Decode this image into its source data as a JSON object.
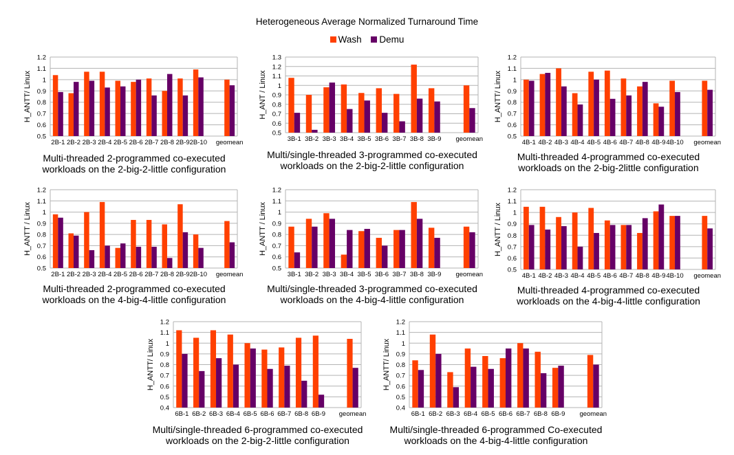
{
  "title": "Heterogeneous Average Normalized Turnaround Time",
  "legend": [
    {
      "name": "Wash",
      "color": "#ff4000"
    },
    {
      "name": "Demu",
      "color": "#660066"
    }
  ],
  "chart_data": [
    {
      "type": "bar",
      "caption": [
        "Multi-threaded 2-programmed co-executed",
        "workloads on the 2-big-2-little configuration"
      ],
      "ylabel": "H_ANTT/ Linux",
      "ylim": [
        0.5,
        1.2
      ],
      "yticks": [
        "0.5",
        "0.6",
        "0.7",
        "0.8",
        "0.9",
        "1",
        "1.1",
        "1.2"
      ],
      "categories": [
        "2B-1",
        "2B-2",
        "2B-3",
        "2B-4",
        "2B-5",
        "2B-6",
        "2B-7",
        "2B-8",
        "2B-9",
        "2B-10",
        "",
        "geomean"
      ],
      "series": [
        {
          "name": "Wash",
          "values": [
            1.04,
            0.88,
            1.07,
            1.07,
            0.99,
            0.98,
            1.01,
            0.9,
            1.01,
            1.09,
            null,
            1.0
          ]
        },
        {
          "name": "Demu",
          "values": [
            0.89,
            0.98,
            0.99,
            0.93,
            0.94,
            1.0,
            0.86,
            1.05,
            0.86,
            1.02,
            null,
            0.95
          ]
        }
      ]
    },
    {
      "type": "bar",
      "caption": [
        "Multi/single-threaded 3-programmed co-executed",
        "workloads on the 2-big-2-little configuration"
      ],
      "ylabel": "H_ANT / Linux",
      "ylim": [
        0.5,
        1.3
      ],
      "yticks": [
        "0.5",
        "0.6",
        "0.7",
        "0.8",
        "0.9",
        "1",
        "1.1",
        "1.2",
        "1.3"
      ],
      "categories": [
        "3B-1",
        "3B-2",
        "3B-3",
        "3B-4",
        "3B-5",
        "3B-6",
        "3B-7",
        "3B-8",
        "3B-9",
        "",
        "geomean"
      ],
      "series": [
        {
          "name": "Wash",
          "values": [
            1.08,
            0.9,
            0.98,
            1.01,
            0.92,
            0.97,
            0.91,
            1.22,
            0.97,
            null,
            1.0
          ]
        },
        {
          "name": "Demu",
          "values": [
            0.71,
            0.53,
            1.03,
            0.75,
            0.84,
            0.71,
            0.62,
            0.86,
            0.83,
            null,
            0.76
          ]
        }
      ]
    },
    {
      "type": "bar",
      "caption": [
        "Multi-threaded 4-programmed co-executed",
        "workloads on the 2-big-2little configuration"
      ],
      "ylabel": "H_ANTT/ Linux",
      "ylim": [
        0.5,
        1.2
      ],
      "yticks": [
        "0.5",
        "0.6",
        "0.7",
        "0.8",
        "0.9",
        "1",
        "1.1",
        "1.2"
      ],
      "categories": [
        "4B-1",
        "4B-2",
        "4B-3",
        "4B-4",
        "4B-5",
        "4B-6",
        "4B-7",
        "4B-8",
        "4B-9",
        "4B-10",
        "",
        "geomean"
      ],
      "series": [
        {
          "name": "Wash",
          "values": [
            1.0,
            1.05,
            1.1,
            0.88,
            1.07,
            1.08,
            1.01,
            0.94,
            0.79,
            0.99,
            null,
            0.99
          ]
        },
        {
          "name": "Demu",
          "values": [
            0.99,
            1.06,
            0.94,
            0.78,
            1.0,
            0.83,
            0.86,
            0.98,
            0.76,
            0.89,
            null,
            0.91
          ]
        }
      ]
    },
    {
      "type": "bar",
      "caption": [
        "Multi-threaded 2-programmed co-executed",
        "workloads on the 4-big-4-little configuration"
      ],
      "ylabel": "H_ANTT / Linux",
      "ylim": [
        0.5,
        1.2
      ],
      "yticks": [
        "0.5",
        "0.6",
        "0.7",
        "0.8",
        "0.9",
        "1",
        "1.1",
        "1.2"
      ],
      "categories": [
        "2B-1",
        "2B-2",
        "2B-3",
        "2B-4",
        "2B-5",
        "2B-6",
        "2B-7",
        "2B-8",
        "2B-9",
        "2B-10",
        "",
        "geomean"
      ],
      "series": [
        {
          "name": "Wash",
          "values": [
            0.98,
            0.81,
            1.0,
            1.09,
            0.68,
            0.93,
            0.93,
            0.89,
            1.07,
            0.8,
            null,
            0.92
          ]
        },
        {
          "name": "Demu",
          "values": [
            0.95,
            0.79,
            0.66,
            0.7,
            0.72,
            0.69,
            0.69,
            0.59,
            0.82,
            0.68,
            null,
            0.73
          ]
        }
      ]
    },
    {
      "type": "bar",
      "caption": [
        "Multi/single-threaded 3-programmed co-executed",
        "workloads on the 4-big-4-little configuration"
      ],
      "ylabel": "H_ANTT / Linux",
      "ylim": [
        0.5,
        1.2
      ],
      "yticks": [
        "0.5",
        "0.6",
        "0.7",
        "0.8",
        "0.9",
        "1",
        "1.1",
        "1.2"
      ],
      "categories": [
        "3B-1",
        "3B-2",
        "3B-3",
        "3B-4",
        "3B-5",
        "3B-6",
        "3B-7",
        "3B-8",
        "3B-9",
        "",
        "geomean"
      ],
      "series": [
        {
          "name": "Wash",
          "values": [
            0.87,
            0.94,
            0.99,
            0.62,
            0.83,
            0.77,
            0.84,
            1.09,
            0.86,
            null,
            0.87
          ]
        },
        {
          "name": "Demu",
          "values": [
            0.64,
            0.87,
            0.94,
            0.84,
            0.85,
            0.7,
            0.84,
            0.94,
            0.77,
            null,
            0.82
          ]
        }
      ]
    },
    {
      "type": "bar",
      "caption": [
        "Multi-threaded 4-programmed co-executed",
        "workloads on the 4-big-4-little configuration"
      ],
      "ylabel": "H_ANTT / Linux",
      "ylim": [
        0.5,
        1.2
      ],
      "yticks": [
        "0.5",
        "0.6",
        "0.7",
        "0.8",
        "0.9",
        "1",
        "1.1",
        "1.2"
      ],
      "categories": [
        "4B-1",
        "4B-2",
        "4B-3",
        "4B-4",
        "4B-5",
        "4B-6",
        "4B-7",
        "4B-8",
        "4B-9",
        "4B-10",
        "",
        "geomean"
      ],
      "series": [
        {
          "name": "Wash",
          "values": [
            1.05,
            1.05,
            0.96,
            1.0,
            1.04,
            0.93,
            0.89,
            0.82,
            1.01,
            0.97,
            null,
            0.97
          ]
        },
        {
          "name": "Demu",
          "values": [
            0.89,
            0.85,
            0.88,
            0.7,
            0.82,
            0.89,
            0.89,
            0.95,
            1.07,
            0.97,
            null,
            0.86
          ]
        }
      ]
    },
    {
      "type": "bar",
      "caption": [
        "Multi/single-threaded 6-programmed co-executed",
        "workloads on the 2-big-2-little configuration"
      ],
      "ylabel": "H_ANTT/ Linux",
      "ylim": [
        0.4,
        1.2
      ],
      "yticks": [
        "0.4",
        "0.5",
        "0.6",
        "0.7",
        "0.8",
        "0.9",
        "1",
        "1.1",
        "1.2"
      ],
      "categories": [
        "6B-1",
        "6B-2",
        "6B-3",
        "6B-4",
        "6B-5",
        "6B-6",
        "6B-7",
        "6B-8",
        "6B-9",
        "",
        "geomean"
      ],
      "series": [
        {
          "name": "Wash",
          "values": [
            1.12,
            1.05,
            1.12,
            1.08,
            1.0,
            0.94,
            0.96,
            1.05,
            1.07,
            null,
            1.04
          ]
        },
        {
          "name": "Demu",
          "values": [
            0.9,
            0.74,
            0.86,
            0.8,
            0.95,
            0.76,
            0.79,
            0.65,
            0.52,
            null,
            0.77
          ]
        }
      ]
    },
    {
      "type": "bar",
      "caption": [
        "Multi/single-threaded 6-programmed Co-executed",
        "workloads on the 4-big-4-little configuration"
      ],
      "ylabel": "H_ANTT/ Linux",
      "ylim": [
        0.4,
        1.2
      ],
      "yticks": [
        "0.4",
        "0.5",
        "0.6",
        "0.7",
        "0.8",
        "0.9",
        "1",
        "1.1",
        "1.2"
      ],
      "categories": [
        "6B-1",
        "6B-2",
        "6B-3",
        "6B-4",
        "6B-5",
        "6B-6",
        "6B-7",
        "6B-8",
        "6B-9",
        "",
        "geomean"
      ],
      "series": [
        {
          "name": "Wash",
          "values": [
            0.84,
            1.08,
            0.73,
            0.95,
            0.88,
            0.86,
            1.0,
            0.92,
            0.77,
            null,
            0.89
          ]
        },
        {
          "name": "Demu",
          "values": [
            0.75,
            0.9,
            0.59,
            0.78,
            0.76,
            0.95,
            0.95,
            0.72,
            0.79,
            null,
            0.8
          ]
        }
      ]
    }
  ]
}
